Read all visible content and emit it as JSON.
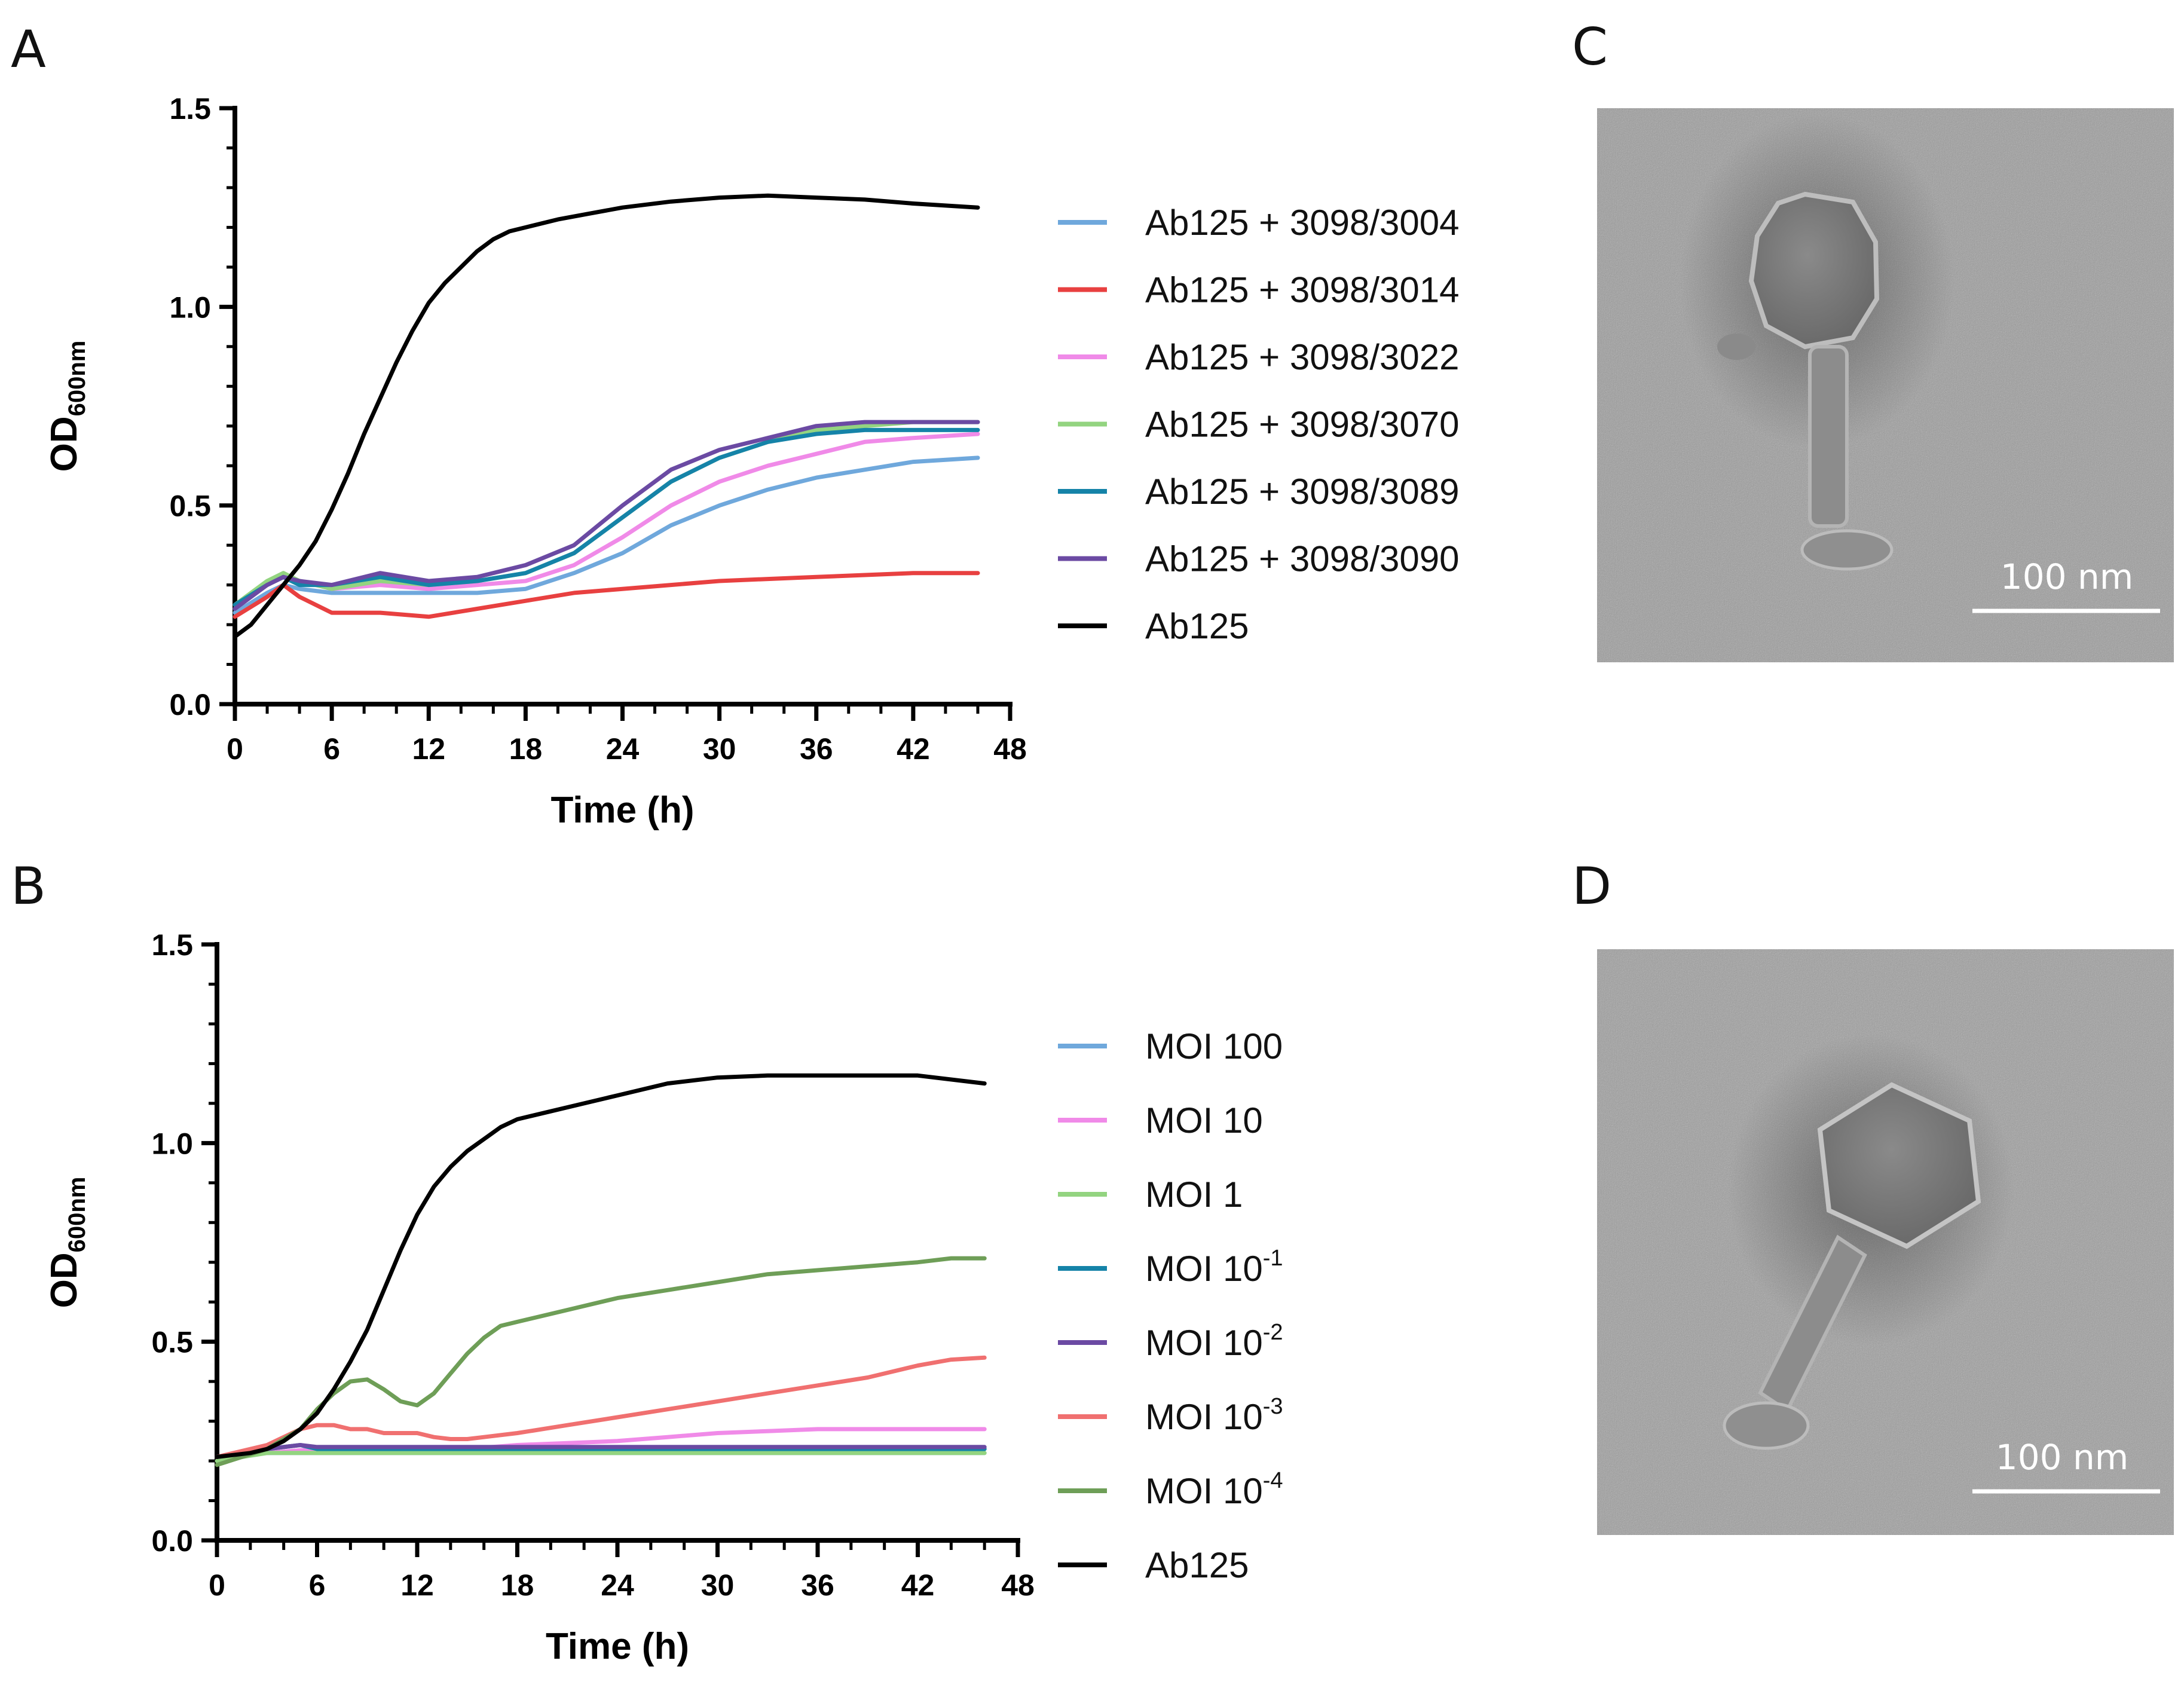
{
  "panels": {
    "a": "A",
    "b": "B",
    "c": "C",
    "d": "D"
  },
  "micrographs": {
    "c": {
      "scale_label": "100 nm"
    },
    "d": {
      "scale_label": "100 nm"
    }
  },
  "chart_data": [
    {
      "type": "line",
      "panel": "A",
      "title": "",
      "xlabel": "Time (h)",
      "ylabel_main": "OD",
      "ylabel_sub": "600nm",
      "xlim": [
        0,
        48
      ],
      "ylim": [
        0,
        1.5
      ],
      "xticks": [
        0,
        6,
        12,
        18,
        24,
        30,
        36,
        42,
        48
      ],
      "xtick_labels": [
        "0",
        "6",
        "12",
        "18",
        "24",
        "30",
        "36",
        "42",
        "48"
      ],
      "yticks": [
        0,
        0.5,
        1,
        1.5
      ],
      "ytick_labels": [
        "0.0",
        "0.5",
        "1.0",
        "1.5"
      ],
      "grid": false,
      "legend_position": "right",
      "series": [
        {
          "name": "Ab125 + 3098/3004",
          "color": "#6fa8dc",
          "x": [
            0,
            2,
            3,
            4,
            6,
            9,
            12,
            15,
            18,
            21,
            24,
            27,
            30,
            33,
            36,
            39,
            42,
            46
          ],
          "y": [
            0.23,
            0.28,
            0.3,
            0.29,
            0.28,
            0.28,
            0.28,
            0.28,
            0.29,
            0.33,
            0.38,
            0.45,
            0.5,
            0.54,
            0.57,
            0.59,
            0.61,
            0.62
          ]
        },
        {
          "name": "Ab125 + 3098/3014",
          "color": "#e84040",
          "x": [
            0,
            2,
            3,
            4,
            6,
            9,
            12,
            15,
            18,
            21,
            24,
            27,
            30,
            33,
            36,
            39,
            42,
            46
          ],
          "y": [
            0.22,
            0.27,
            0.3,
            0.27,
            0.23,
            0.23,
            0.22,
            0.24,
            0.26,
            0.28,
            0.29,
            0.3,
            0.31,
            0.315,
            0.32,
            0.325,
            0.33,
            0.33
          ]
        },
        {
          "name": "Ab125 + 3098/3022",
          "color": "#f08ae8",
          "x": [
            0,
            2,
            3,
            4,
            6,
            9,
            12,
            15,
            18,
            21,
            24,
            27,
            30,
            33,
            36,
            39,
            42,
            46
          ],
          "y": [
            0.24,
            0.3,
            0.32,
            0.31,
            0.29,
            0.3,
            0.29,
            0.3,
            0.31,
            0.35,
            0.42,
            0.5,
            0.56,
            0.6,
            0.63,
            0.66,
            0.67,
            0.68
          ]
        },
        {
          "name": "Ab125 + 3098/3070",
          "color": "#93d480",
          "x": [
            0,
            2,
            3,
            4,
            6,
            9,
            12,
            15,
            18,
            21,
            24,
            27,
            30,
            33,
            36,
            39,
            42,
            46
          ],
          "y": [
            0.25,
            0.31,
            0.33,
            0.31,
            0.29,
            0.31,
            0.3,
            0.31,
            0.33,
            0.38,
            0.47,
            0.56,
            0.62,
            0.66,
            0.69,
            0.7,
            0.71,
            0.71
          ]
        },
        {
          "name": "Ab125 + 3098/3089",
          "color": "#1583a8",
          "x": [
            0,
            2,
            3,
            4,
            6,
            9,
            12,
            15,
            18,
            21,
            24,
            27,
            30,
            33,
            36,
            39,
            42,
            46
          ],
          "y": [
            0.25,
            0.3,
            0.32,
            0.3,
            0.3,
            0.32,
            0.3,
            0.31,
            0.33,
            0.38,
            0.47,
            0.56,
            0.62,
            0.66,
            0.68,
            0.69,
            0.69,
            0.69
          ]
        },
        {
          "name": "Ab125 + 3098/3090",
          "color": "#6b4aa3",
          "x": [
            0,
            2,
            3,
            4,
            6,
            9,
            12,
            15,
            18,
            21,
            24,
            27,
            30,
            33,
            36,
            39,
            42,
            46
          ],
          "y": [
            0.24,
            0.3,
            0.32,
            0.31,
            0.3,
            0.33,
            0.31,
            0.32,
            0.35,
            0.4,
            0.5,
            0.59,
            0.64,
            0.67,
            0.7,
            0.71,
            0.71,
            0.71
          ]
        },
        {
          "name": "Ab125",
          "color": "#000000",
          "x": [
            0,
            1,
            2,
            3,
            4,
            5,
            6,
            7,
            8,
            9,
            10,
            11,
            12,
            13,
            14,
            15,
            16,
            17,
            18,
            20,
            22,
            24,
            27,
            30,
            33,
            36,
            39,
            42,
            46
          ],
          "y": [
            0.17,
            0.2,
            0.25,
            0.3,
            0.35,
            0.41,
            0.49,
            0.58,
            0.68,
            0.77,
            0.86,
            0.94,
            1.01,
            1.06,
            1.1,
            1.14,
            1.17,
            1.19,
            1.2,
            1.22,
            1.235,
            1.25,
            1.265,
            1.275,
            1.28,
            1.275,
            1.27,
            1.26,
            1.25
          ]
        }
      ]
    },
    {
      "type": "line",
      "panel": "B",
      "title": "",
      "xlabel": "Time (h)",
      "ylabel_main": "OD",
      "ylabel_sub": "600nm",
      "xlim": [
        0,
        48
      ],
      "ylim": [
        0,
        1.5
      ],
      "xticks": [
        0,
        6,
        12,
        18,
        24,
        30,
        36,
        42,
        48
      ],
      "xtick_labels": [
        "0",
        "6",
        "12",
        "18",
        "24",
        "30",
        "36",
        "42",
        "48"
      ],
      "yticks": [
        0,
        0.5,
        1,
        1.5
      ],
      "ytick_labels": [
        "0.0",
        "0.5",
        "1.0",
        "1.5"
      ],
      "grid": false,
      "legend_position": "right",
      "series": [
        {
          "name": "MOI 100",
          "label_base": "MOI 100",
          "label_exp": "",
          "color": "#6fa8dc",
          "x": [
            0,
            3,
            6,
            12,
            18,
            24,
            30,
            36,
            42,
            46
          ],
          "y": [
            0.21,
            0.22,
            0.22,
            0.22,
            0.22,
            0.22,
            0.22,
            0.22,
            0.22,
            0.22
          ]
        },
        {
          "name": "MOI 10",
          "label_base": "MOI 10",
          "label_exp": "",
          "color": "#f08ae8",
          "x": [
            0,
            3,
            6,
            12,
            15,
            18,
            21,
            24,
            27,
            30,
            33,
            36,
            39,
            42,
            46
          ],
          "y": [
            0.21,
            0.22,
            0.23,
            0.23,
            0.23,
            0.24,
            0.245,
            0.25,
            0.26,
            0.27,
            0.275,
            0.28,
            0.28,
            0.28,
            0.28
          ]
        },
        {
          "name": "MOI 1",
          "label_base": "MOI 1",
          "label_exp": "",
          "color": "#93d480",
          "x": [
            0,
            3,
            6,
            12,
            18,
            24,
            30,
            36,
            42,
            46
          ],
          "y": [
            0.2,
            0.22,
            0.22,
            0.22,
            0.22,
            0.22,
            0.22,
            0.22,
            0.22,
            0.22
          ]
        },
        {
          "name": "MOI 10-1",
          "label_base": "MOI 10",
          "label_exp": "-1",
          "color": "#1583a8",
          "x": [
            0,
            3,
            5,
            6,
            12,
            18,
            24,
            30,
            36,
            42,
            46
          ],
          "y": [
            0.21,
            0.23,
            0.24,
            0.23,
            0.23,
            0.23,
            0.23,
            0.23,
            0.23,
            0.23,
            0.23
          ]
        },
        {
          "name": "MOI 10-2",
          "label_base": "MOI 10",
          "label_exp": "-2",
          "color": "#6b4aa3",
          "x": [
            0,
            3,
            5,
            6,
            12,
            18,
            24,
            30,
            36,
            42,
            46
          ],
          "y": [
            0.21,
            0.23,
            0.24,
            0.235,
            0.235,
            0.235,
            0.235,
            0.235,
            0.235,
            0.235,
            0.235
          ]
        },
        {
          "name": "MOI 10-3",
          "label_base": "MOI 10",
          "label_exp": "-3",
          "color": "#f07070",
          "x": [
            0,
            3,
            5,
            6,
            7,
            8,
            9,
            10,
            11,
            12,
            13,
            14,
            15,
            16,
            18,
            21,
            24,
            27,
            30,
            33,
            36,
            39,
            42,
            44,
            46
          ],
          "y": [
            0.21,
            0.24,
            0.28,
            0.29,
            0.29,
            0.28,
            0.28,
            0.27,
            0.27,
            0.27,
            0.26,
            0.255,
            0.255,
            0.26,
            0.27,
            0.29,
            0.31,
            0.33,
            0.35,
            0.37,
            0.39,
            0.41,
            0.44,
            0.455,
            0.46
          ]
        },
        {
          "name": "MOI 10-4",
          "label_base": "MOI 10",
          "label_exp": "-4",
          "color": "#6e9e57",
          "x": [
            0,
            3,
            5,
            6,
            7,
            8,
            9,
            10,
            11,
            12,
            13,
            14,
            15,
            16,
            17,
            18,
            21,
            24,
            27,
            30,
            33,
            36,
            39,
            42,
            44,
            46
          ],
          "y": [
            0.19,
            0.23,
            0.28,
            0.33,
            0.37,
            0.4,
            0.405,
            0.38,
            0.35,
            0.34,
            0.37,
            0.42,
            0.47,
            0.51,
            0.54,
            0.55,
            0.58,
            0.61,
            0.63,
            0.65,
            0.67,
            0.68,
            0.69,
            0.7,
            0.71,
            0.71
          ]
        },
        {
          "name": "Ab125",
          "label_base": "Ab125",
          "label_exp": "",
          "color": "#000000",
          "x": [
            0,
            2,
            3,
            4,
            5,
            6,
            7,
            8,
            9,
            10,
            11,
            12,
            13,
            14,
            15,
            16,
            17,
            18,
            20,
            22,
            24,
            27,
            30,
            33,
            36,
            39,
            42,
            46
          ],
          "y": [
            0.21,
            0.22,
            0.23,
            0.25,
            0.28,
            0.32,
            0.38,
            0.45,
            0.53,
            0.63,
            0.73,
            0.82,
            0.89,
            0.94,
            0.98,
            1.01,
            1.04,
            1.06,
            1.08,
            1.1,
            1.12,
            1.15,
            1.165,
            1.17,
            1.17,
            1.17,
            1.17,
            1.15
          ]
        }
      ]
    }
  ]
}
